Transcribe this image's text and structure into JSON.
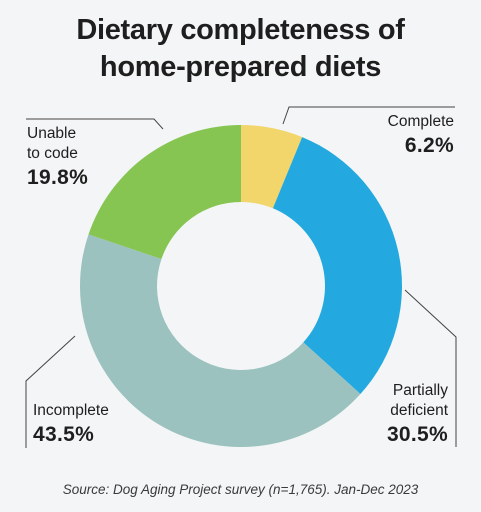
{
  "chart_data": {
    "type": "pie",
    "donut": true,
    "title_line1": "Dietary completeness of",
    "title_line2": "home-prepared diets",
    "slices": [
      {
        "label": "Complete",
        "value": 6.2,
        "display": "6.2%",
        "color": "#f2d66b"
      },
      {
        "label": "Partially deficient",
        "label_line1": "Partially",
        "label_line2": "deficient",
        "value": 30.5,
        "display": "30.5%",
        "color": "#23a9df"
      },
      {
        "label": "Incomplete",
        "value": 43.5,
        "display": "43.5%",
        "color": "#9bc2bf"
      },
      {
        "label": "Unable to code",
        "label_line1": "Unable",
        "label_line2": "to code",
        "value": 19.8,
        "display": "19.8%",
        "color": "#86c552"
      }
    ],
    "source": "Source: Dog Aging Project survey (n=1,765). Jan-Dec 2023"
  }
}
